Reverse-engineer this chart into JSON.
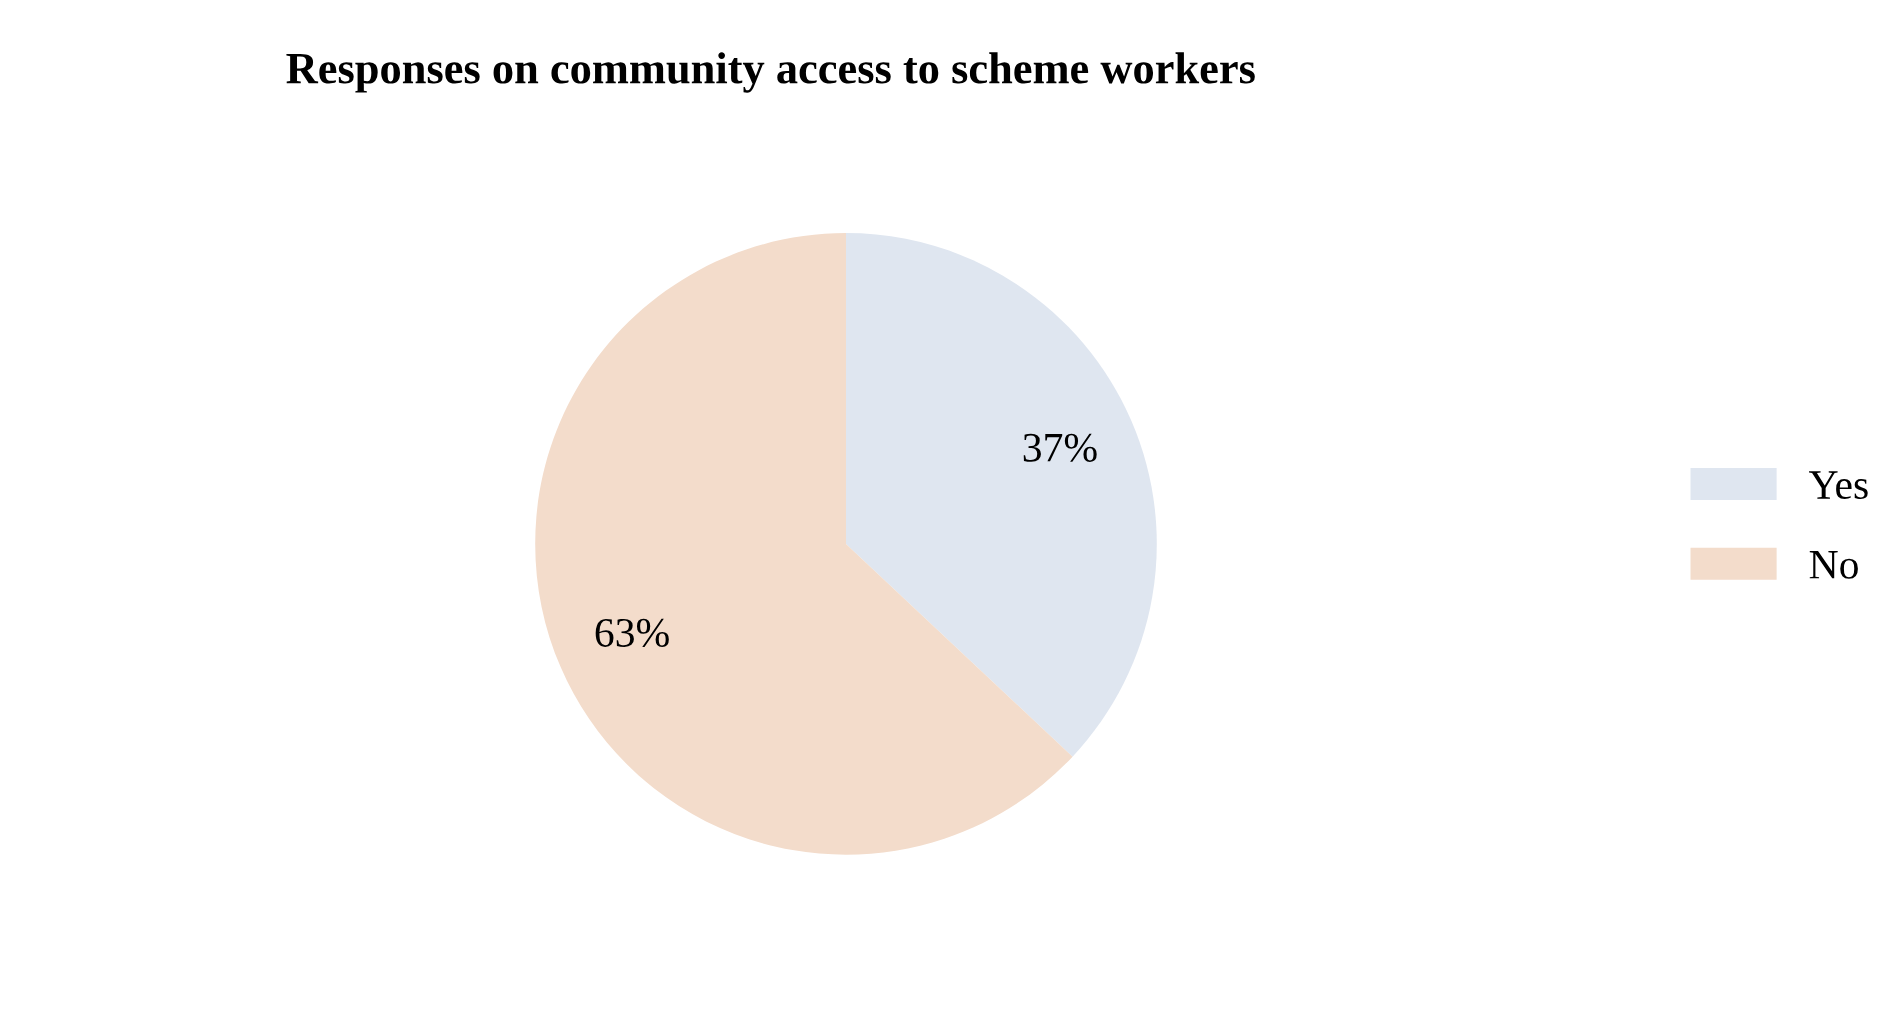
{
  "chart_data": {
    "type": "pie",
    "title": "Responses on community access to scheme workers",
    "categories": [
      "Yes",
      "No"
    ],
    "values": [
      37,
      63
    ],
    "colors": [
      "#dfe6f0",
      "#f3dccb"
    ],
    "value_labels": [
      "37%",
      "63%"
    ],
    "legend": "right"
  }
}
